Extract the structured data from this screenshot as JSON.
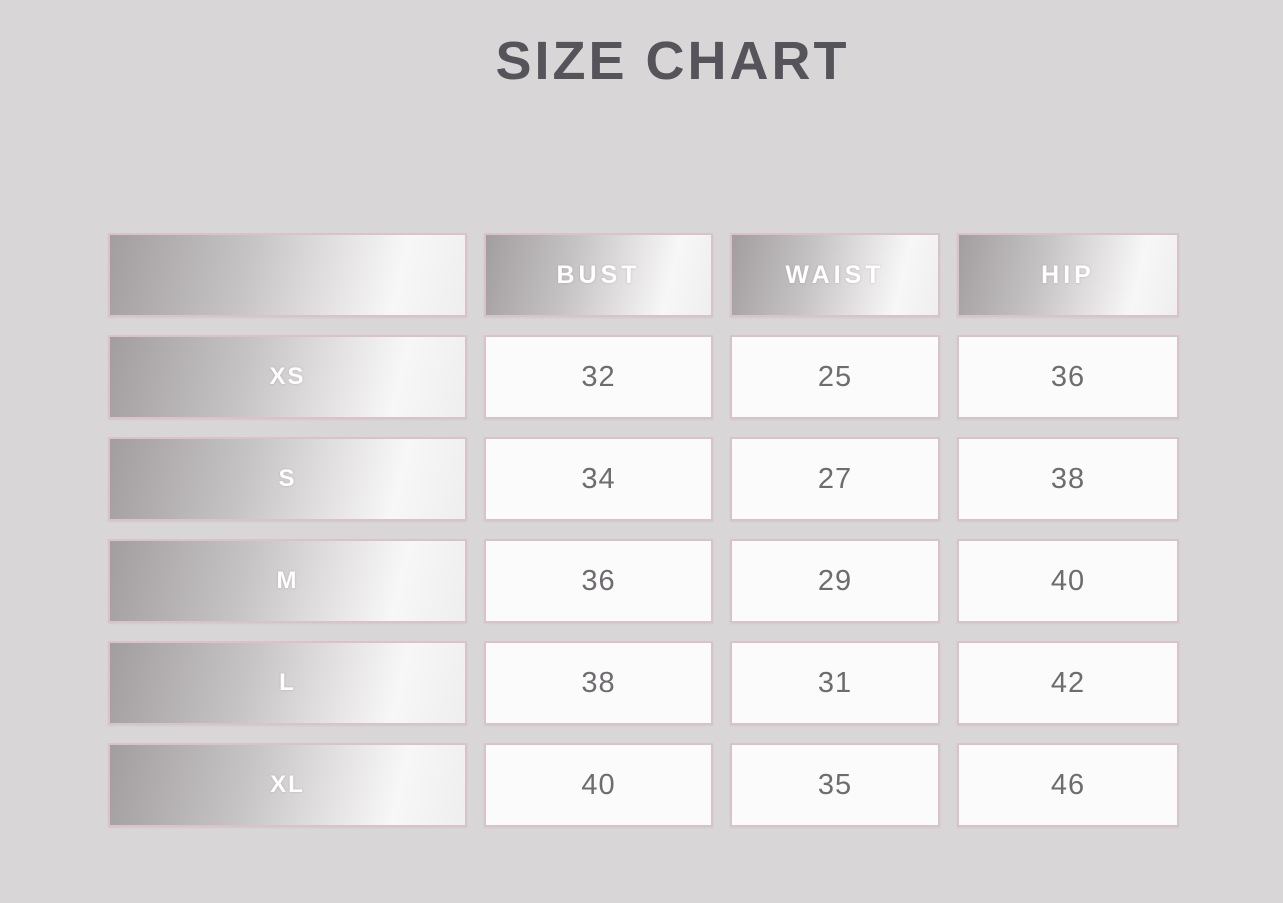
{
  "title": "SIZE CHART",
  "chart_data": {
    "type": "table",
    "title": "SIZE CHART",
    "columns": [
      "",
      "BUST",
      "WAIST",
      "HIP"
    ],
    "rows": [
      {
        "size": "XS",
        "bust": "32",
        "waist": "25",
        "hip": "36"
      },
      {
        "size": "S",
        "bust": "34",
        "waist": "27",
        "hip": "38"
      },
      {
        "size": "M",
        "bust": "36",
        "waist": "29",
        "hip": "40"
      },
      {
        "size": "L",
        "bust": "38",
        "waist": "31",
        "hip": "42"
      },
      {
        "size": "XL",
        "bust": "40",
        "waist": "35",
        "hip": "46"
      }
    ],
    "layout": {
      "header_style": "metallic-gradient",
      "row_label_style": "metallic-gradient",
      "value_cell_style": "white",
      "grid": "separated-cells"
    }
  },
  "colors": {
    "background": "#d8d6d7",
    "title_text": "#56545a",
    "value_text": "#6e6c6f",
    "header_text": "#ffffff",
    "cell_border": "#d9c2c8",
    "cell_background": "#fcfbfb",
    "metal_dark": "#a29ea0",
    "metal_mid": "#c6c3c4",
    "metal_light": "#f8f7f7"
  }
}
